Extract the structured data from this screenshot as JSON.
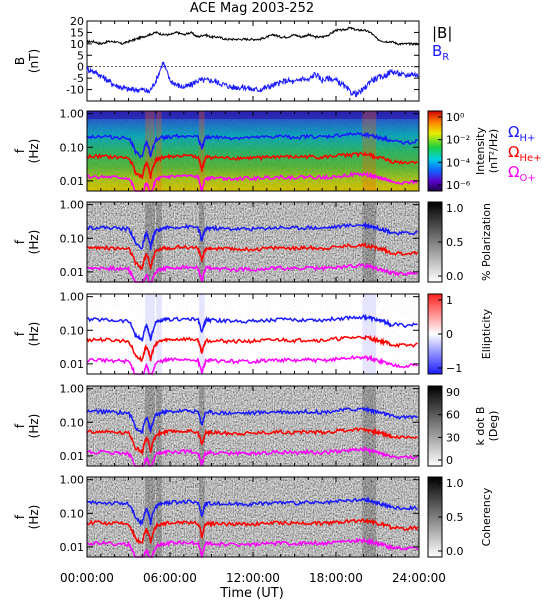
{
  "title": "ACE Mag 2003-252",
  "time_axis": {
    "label": "Time (UT)",
    "ticks": [
      "00:00:00",
      "06:00:00",
      "12:00:00",
      "18:00:00",
      "24:00:00"
    ],
    "range_hours": [
      0,
      24
    ]
  },
  "legend": {
    "b_total": "|B|",
    "b_r_main": "B",
    "b_r_sub": "R",
    "cyclotron": [
      {
        "sym": "Ω",
        "sub": "H+",
        "color": "#1a1aff"
      },
      {
        "sym": "Ω",
        "sub": "He+",
        "color": "#ff0000"
      },
      {
        "sym": "Ω",
        "sub": "O+",
        "color": "#ff00ff"
      }
    ]
  },
  "colors": {
    "b_total": "#000000",
    "b_r": "#1a1aff",
    "h_plus": "#1a1aff",
    "he_plus": "#ff0000",
    "o_plus": "#ff00ff"
  },
  "freq_ticks": [
    "1.00",
    "0.10",
    "0.01"
  ],
  "chart_data": [
    {
      "type": "line",
      "panel": "field",
      "ylabel": "B",
      "yunit": "(nT)",
      "ylim": [
        -15,
        20
      ],
      "yticks": [
        "20",
        "15",
        "10",
        "5",
        "0",
        "-5",
        "-10"
      ],
      "series": [
        {
          "name": "|B|",
          "x_hours": [
            0,
            0.5,
            1,
            1.5,
            2,
            2.5,
            3,
            3.5,
            4,
            4.5,
            5,
            5.5,
            6,
            6.5,
            7,
            7.5,
            8,
            8.5,
            9,
            9.5,
            10,
            10.5,
            11,
            11.5,
            12,
            12.5,
            13,
            13.5,
            14,
            14.5,
            15,
            15.5,
            16,
            16.5,
            17,
            17.5,
            18,
            18.5,
            19,
            19.5,
            20,
            20.5,
            21,
            21.5,
            22,
            22.5,
            23,
            23.5,
            24
          ],
          "values": [
            11,
            11,
            10,
            11,
            11,
            10,
            11,
            12,
            13,
            14,
            15,
            14,
            14,
            15,
            14,
            15,
            13,
            14,
            13,
            13,
            12,
            12,
            12,
            12,
            12,
            12,
            13,
            14,
            13,
            13,
            14,
            13,
            14,
            13,
            13,
            14,
            16,
            16,
            17,
            16,
            16,
            15,
            12,
            11,
            11,
            10,
            10,
            10,
            10
          ]
        },
        {
          "name": "B_R",
          "x_hours": [
            0,
            0.5,
            1,
            1.5,
            2,
            2.5,
            3,
            3.5,
            4,
            4.5,
            5,
            5.5,
            6,
            6.5,
            7,
            7.5,
            8,
            8.5,
            9,
            9.5,
            10,
            10.5,
            11,
            11.5,
            12,
            12.5,
            13,
            13.5,
            14,
            14.5,
            15,
            15.5,
            16,
            16.5,
            17,
            17.5,
            18,
            18.5,
            19,
            19.5,
            20,
            20.5,
            21,
            21.5,
            22,
            22.5,
            23,
            23.5,
            24
          ],
          "values": [
            -1,
            -2,
            -4,
            -6,
            -8,
            -9,
            -10,
            -10,
            -10,
            -11,
            -6,
            2,
            -6,
            -8,
            -9,
            -8,
            -6,
            -6,
            -6,
            -7,
            -8,
            -9,
            -9,
            -9,
            -10,
            -10,
            -9,
            -8,
            -7,
            -6,
            -7,
            -5,
            -6,
            -3,
            -6,
            -5,
            -6,
            -8,
            -11,
            -12,
            -10,
            -6,
            -5,
            -4,
            -2,
            -3,
            -4,
            -3,
            -4
          ]
        }
      ]
    },
    {
      "type": "heatmap",
      "panel": "power",
      "ylabel": "f",
      "yunit": "(Hz)",
      "colorbar_label": "Intensity",
      "colorbar_unit": "(nT²/Hz)",
      "colorbar_ticks": [
        "10⁰",
        "10⁻²",
        "10⁻⁴",
        "10⁻⁶"
      ],
      "colorbar_range": [
        -6,
        1
      ],
      "scale": "log"
    },
    {
      "type": "heatmap",
      "panel": "polarization",
      "ylabel": "f",
      "yunit": "(Hz)",
      "colorbar_label": "% Polarization",
      "colorbar_ticks": [
        "1.0",
        "0.5",
        "0.0"
      ],
      "colorbar_range": [
        0,
        1
      ]
    },
    {
      "type": "heatmap",
      "panel": "ellipticity",
      "ylabel": "f",
      "yunit": "(Hz)",
      "colorbar_label": "Ellipticity",
      "colorbar_ticks": [
        "1",
        "0",
        "−1"
      ],
      "colorbar_range": [
        -1,
        1
      ]
    },
    {
      "type": "heatmap",
      "panel": "kdotb",
      "ylabel": "f",
      "yunit": "(Hz)",
      "colorbar_label": "k dot B",
      "colorbar_unit": "(Deg)",
      "colorbar_ticks": [
        "90",
        "60",
        "30",
        "0"
      ],
      "colorbar_range": [
        0,
        90
      ]
    },
    {
      "type": "heatmap",
      "panel": "coherency",
      "ylabel": "f",
      "yunit": "(Hz)",
      "colorbar_label": "Coherency",
      "colorbar_ticks": [
        "1.0",
        "0.5",
        "0.0"
      ],
      "colorbar_range": [
        0,
        1
      ]
    }
  ],
  "cyclotron_freqs_hz": {
    "x_hours": [
      0,
      1,
      2,
      3,
      3.5,
      4,
      4.3,
      4.6,
      5,
      5.5,
      6,
      7,
      8,
      8.3,
      8.6,
      9,
      10,
      11,
      12,
      13,
      14,
      15,
      16,
      17,
      18,
      19,
      20,
      20.5,
      21,
      21.5,
      22,
      23,
      24
    ],
    "h_plus": [
      0.21,
      0.21,
      0.2,
      0.19,
      0.07,
      0.05,
      0.14,
      0.05,
      0.17,
      0.2,
      0.21,
      0.22,
      0.21,
      0.08,
      0.2,
      0.2,
      0.19,
      0.19,
      0.19,
      0.2,
      0.21,
      0.2,
      0.21,
      0.2,
      0.22,
      0.24,
      0.25,
      0.23,
      0.2,
      0.18,
      0.15,
      0.14,
      0.15
    ]
  }
}
